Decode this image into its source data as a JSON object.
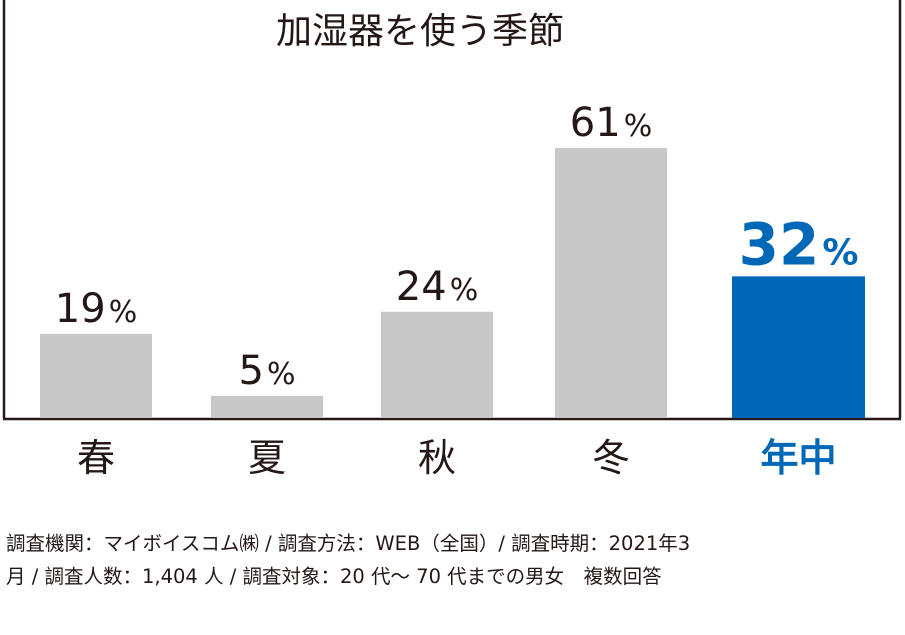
{
  "chart_data": {
    "type": "bar",
    "title": "加湿器を使う季節",
    "categories": [
      "春",
      "夏",
      "秋",
      "冬",
      "年中"
    ],
    "values": [
      19,
      5,
      24,
      61,
      32
    ],
    "unit": "%",
    "highlight_index": 4,
    "ylim": [
      0,
      70
    ],
    "colors": {
      "bar": "#c8c8c8",
      "highlight": "#0068b7",
      "text": "#231815",
      "axis": "#231815"
    },
    "grid": false,
    "legend": "none"
  },
  "footnote": {
    "line1": "調査機関：マイボイスコム㈱ / 調査方法：WEB（全国）/ 調査時期：2021年3",
    "line2": "月 / 調査人数：1,404 人 / 調査対象：20 代～ 70 代までの男女　複数回答"
  }
}
